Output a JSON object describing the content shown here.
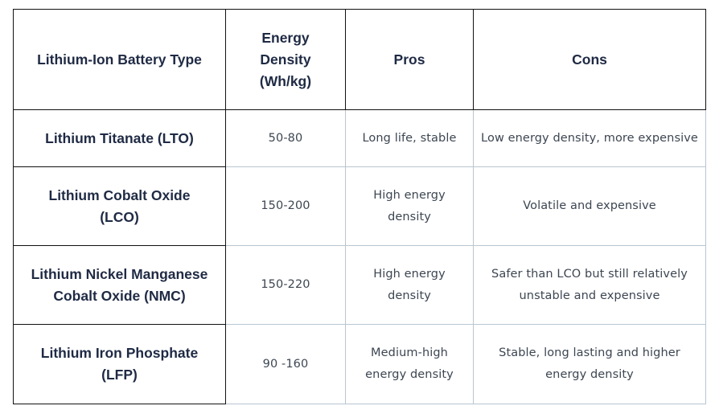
{
  "table": {
    "headers": [
      "Lithium-Ion Battery Type",
      "Energy Density (Wh/kg)",
      "Pros",
      "Cons"
    ],
    "rows": [
      {
        "type": "Lithium Titanate (LTO)",
        "energy_density": "50-80",
        "pros": "Long life, stable",
        "cons": "Low energy density, more expensive"
      },
      {
        "type": "Lithium Cobalt Oxide (LCO)",
        "energy_density": "150-200",
        "pros": "High energy density",
        "cons": "Volatile and expensive"
      },
      {
        "type": "Lithium Nickel Manganese Cobalt Oxide (NMC)",
        "energy_density": "150-220",
        "pros": "High energy density",
        "cons": "Safer than LCO but still relatively unstable and expensive"
      },
      {
        "type": "Lithium Iron Phosphate (LFP)",
        "energy_density": "90 -160",
        "pros": "Medium-high energy density",
        "cons": "Stable, long lasting and higher energy density"
      }
    ]
  }
}
